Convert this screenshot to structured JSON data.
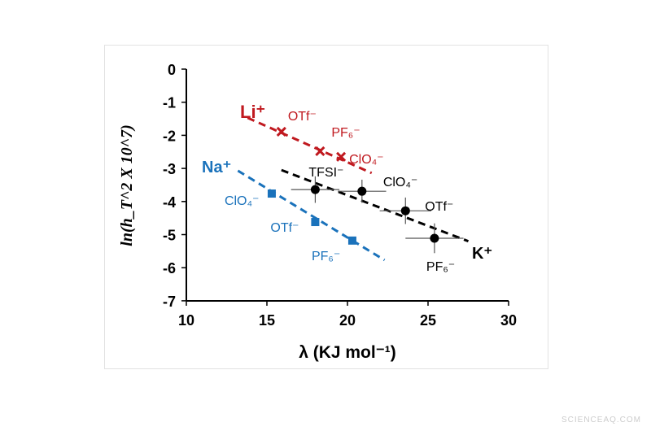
{
  "chart_data": {
    "type": "scatter",
    "xlabel": "λ (KJ mol⁻¹)",
    "ylabel": "ln(h_T^2 X 10^7)",
    "xlim": [
      10,
      30
    ],
    "ylim": [
      -7,
      0
    ],
    "xticks": [
      10,
      15,
      20,
      25,
      30
    ],
    "yticks": [
      0,
      -1,
      -2,
      -3,
      -4,
      -5,
      -6,
      -7
    ],
    "grid": false,
    "series": [
      {
        "name": "Li⁺",
        "color": "#c0191f",
        "marker": "x",
        "points": [
          {
            "x": 15.9,
            "y": -1.89,
            "label": "OTf⁻"
          },
          {
            "x": 18.3,
            "y": -2.48,
            "label": "PF₆⁻"
          },
          {
            "x": 19.6,
            "y": -2.65,
            "label": "ClO₄⁻"
          }
        ],
        "trend": [
          [
            13.8,
            -1.47
          ],
          [
            21.5,
            -3.14
          ]
        ]
      },
      {
        "name": "Na⁺",
        "color": "#1a72bb",
        "marker": "square",
        "points": [
          {
            "x": 15.3,
            "y": -3.76,
            "label": "ClO₄⁻"
          },
          {
            "x": 18.0,
            "y": -4.62,
            "label": "OTf⁻"
          },
          {
            "x": 20.3,
            "y": -5.18,
            "label": "PF₆⁻"
          }
        ],
        "trend": [
          [
            13.2,
            -3.07
          ],
          [
            22.3,
            -5.77
          ]
        ]
      },
      {
        "name": "K⁺",
        "color": "#000000",
        "marker": "circle",
        "points": [
          {
            "x": 18.0,
            "y": -3.64,
            "label": "TFSI⁻",
            "xerr": 1.5,
            "yerr": 0.4
          },
          {
            "x": 20.9,
            "y": -3.69,
            "label": "ClO₄⁻",
            "xerr": 1.5,
            "yerr": 0.35
          },
          {
            "x": 23.6,
            "y": -4.28,
            "label": "OTf⁻",
            "xerr": 1.6,
            "yerr": 0.4
          },
          {
            "x": 25.4,
            "y": -5.11,
            "label": "PF₆⁻",
            "xerr": 1.8,
            "yerr": 0.45
          }
        ],
        "trend": [
          [
            15.9,
            -3.05
          ],
          [
            27.5,
            -5.2
          ]
        ]
      }
    ]
  },
  "watermark": "SCIENCEAQ.COM"
}
